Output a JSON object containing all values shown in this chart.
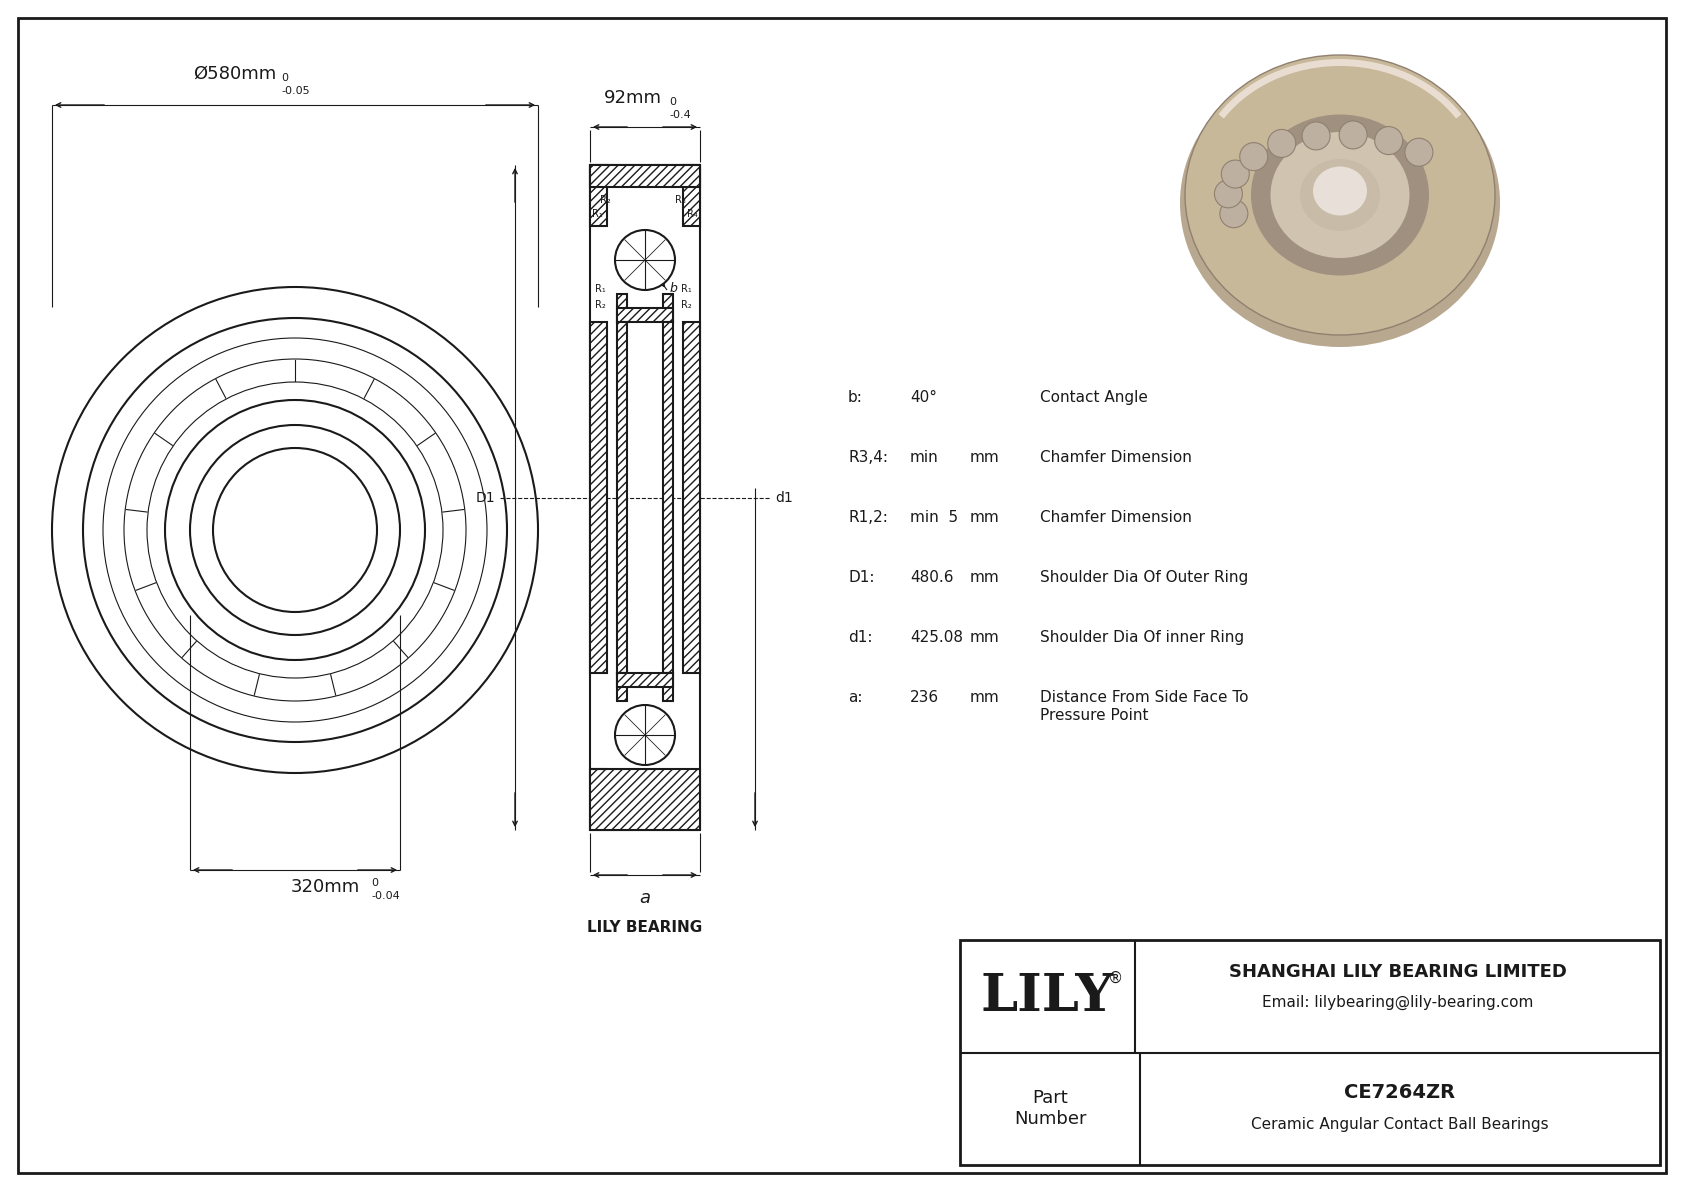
{
  "bg_color": "#ffffff",
  "line_color": "#1a1a1a",
  "title_box": {
    "company": "SHANGHAI LILY BEARING LIMITED",
    "email": "Email: lilybearing@lily-bearing.com",
    "part_label": "Part\nNumber",
    "part_number": "CE7264ZR",
    "part_desc": "Ceramic Angular Contact Ball Bearings",
    "lily_text": "LILY"
  },
  "specs": [
    {
      "label": "b:",
      "value": "40°",
      "unit": "",
      "desc": "Contact Angle"
    },
    {
      "label": "R3,4:",
      "value": "min",
      "unit": "mm",
      "desc": "Chamfer Dimension"
    },
    {
      "label": "R1,2:",
      "value": "min  5",
      "unit": "mm",
      "desc": "Chamfer Dimension"
    },
    {
      "label": "D1:",
      "value": "480.6",
      "unit": "mm",
      "desc": "Shoulder Dia Of Outer Ring"
    },
    {
      "label": "d1:",
      "value": "425.08",
      "unit": "mm",
      "desc": "Shoulder Dia Of inner Ring"
    },
    {
      "label": "a:",
      "value": "236",
      "unit": "mm",
      "desc": "Distance From Side Face To\nPressure Point"
    }
  ],
  "dims": {
    "outer_dia": "Ø580mm",
    "outer_tol": "-0.05",
    "outer_tol_upper": "0",
    "width": "92mm",
    "width_tol": "-0.4",
    "width_tol_upper": "0",
    "inner_dia": "320mm",
    "inner_tol": "-0.04",
    "inner_tol_upper": "0"
  }
}
